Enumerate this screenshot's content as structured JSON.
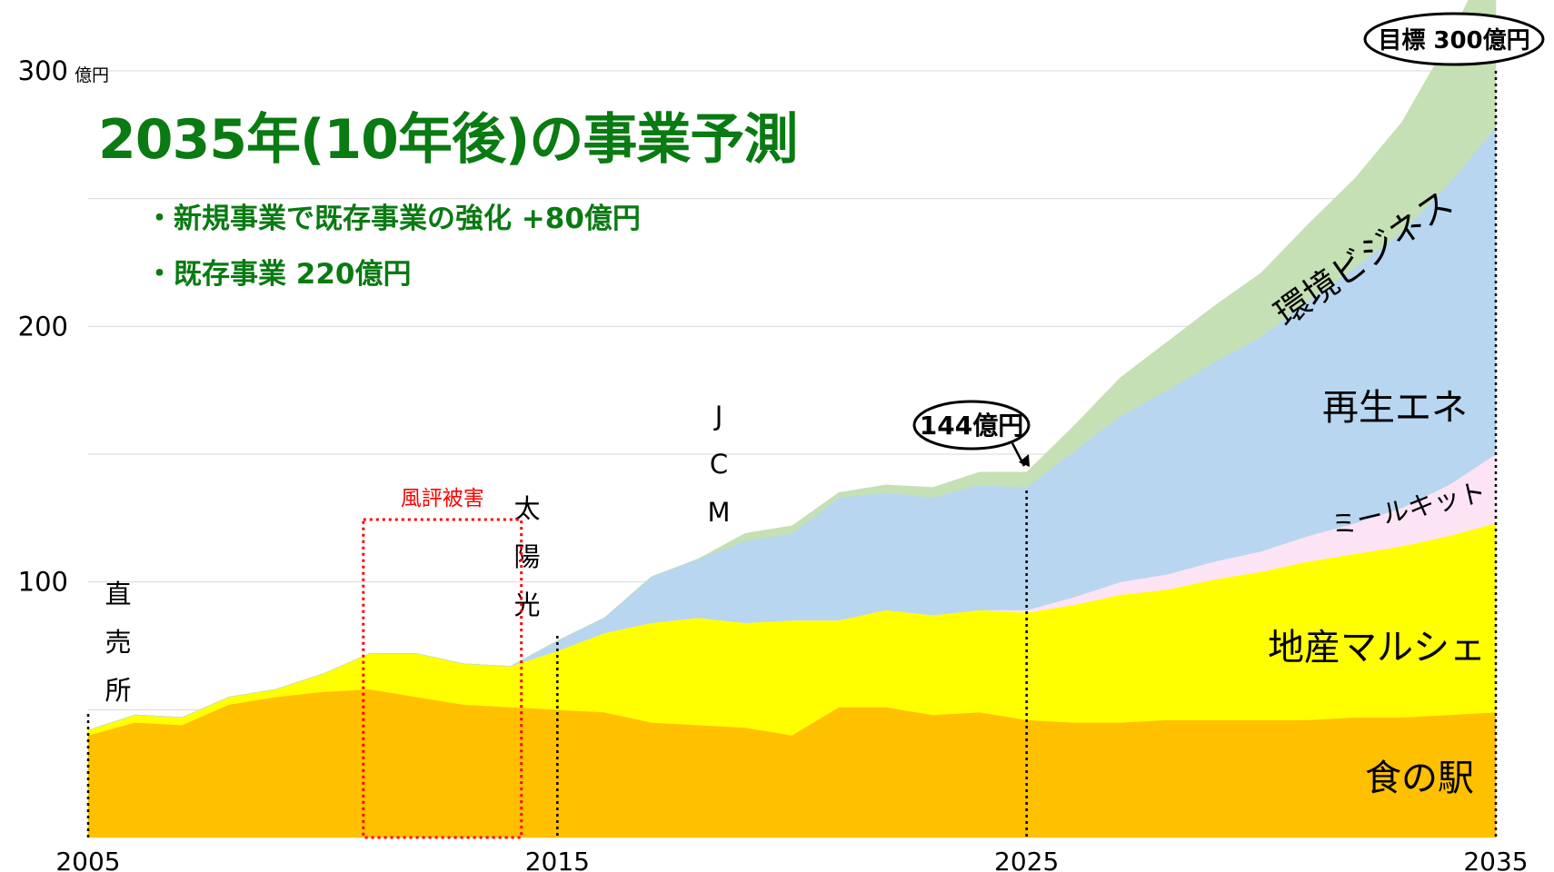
{
  "chart_data": {
    "type": "area",
    "title": "2035年(10年後)の事業予測",
    "bullets": [
      "・新規事業で既存事業の強化 +80億円",
      "・既存事業 220億円"
    ],
    "y_unit": "億円",
    "ylim": [
      0,
      300
    ],
    "y_ticks": [
      100,
      200,
      300
    ],
    "xlim": [
      2005,
      2035
    ],
    "x_ticks": [
      2005,
      2015,
      2025,
      2035
    ],
    "grid": true,
    "x": [
      2005,
      2006,
      2007,
      2008,
      2009,
      2010,
      2011,
      2012,
      2013,
      2014,
      2015,
      2016,
      2017,
      2018,
      2019,
      2020,
      2021,
      2022,
      2023,
      2024,
      2025,
      2026,
      2027,
      2028,
      2029,
      2030,
      2031,
      2032,
      2033,
      2034,
      2035
    ],
    "series": [
      {
        "name": "食の駅",
        "color": "#ffc000",
        "values": [
          40,
          45,
          44,
          52,
          55,
          57,
          58,
          55,
          52,
          51,
          50,
          49,
          45,
          44,
          43,
          40,
          51,
          51,
          48,
          49,
          46,
          45,
          45,
          46,
          46,
          46,
          46,
          47,
          47,
          48,
          49
        ]
      },
      {
        "name": "地産マルシェ",
        "color": "#ffff00",
        "values": [
          2,
          3,
          3,
          3,
          3,
          7,
          14,
          17,
          16,
          16,
          23,
          31,
          39,
          42,
          41,
          45,
          34,
          38,
          39,
          40,
          42,
          46,
          50,
          51,
          55,
          58,
          62,
          64,
          67,
          70,
          74
        ]
      },
      {
        "name": "ミールキット",
        "color": "#fce4f5",
        "values": [
          0,
          0,
          0,
          0,
          0,
          0,
          0,
          0,
          0,
          0,
          0,
          0,
          0,
          0,
          0,
          0,
          0,
          0,
          0,
          0,
          1,
          3,
          5,
          6,
          7,
          8,
          10,
          12,
          15,
          20,
          27
        ]
      },
      {
        "name": "再生エネ",
        "color": "#b8d6ef",
        "values": [
          0,
          0,
          0,
          0,
          0,
          0,
          0,
          0,
          0,
          0,
          4,
          6,
          18,
          23,
          32,
          34,
          48,
          46,
          46,
          49,
          48,
          57,
          65,
          72,
          78,
          84,
          92,
          100,
          108,
          118,
          128
        ]
      },
      {
        "name": "環境ビジネス",
        "color": "#c5e0b4",
        "values": [
          0,
          0,
          0,
          0,
          0,
          0,
          0,
          0,
          0,
          0,
          0,
          0,
          0,
          0,
          3,
          3,
          2,
          3,
          4,
          5,
          6,
          10,
          15,
          19,
          22,
          25,
          30,
          35,
          43,
          56,
          72
        ]
      }
    ],
    "annotations": [
      {
        "text": "直\n売\n所",
        "year": 2005
      },
      {
        "text": "風評被害",
        "year_start": 2011,
        "year_end": 2014
      },
      {
        "text": "太\n陽\n光",
        "year": 2015
      },
      {
        "text": "J\nC\nM",
        "year": 2019
      },
      {
        "text": "144億円",
        "year": 2025,
        "value": 144
      },
      {
        "text": "目標 300億円",
        "year": 2035,
        "value": 300
      }
    ],
    "series_labels": [
      "食の駅",
      "地産マルシェ",
      "ミールキット",
      "再生エネ",
      "環境ビジネス"
    ]
  }
}
